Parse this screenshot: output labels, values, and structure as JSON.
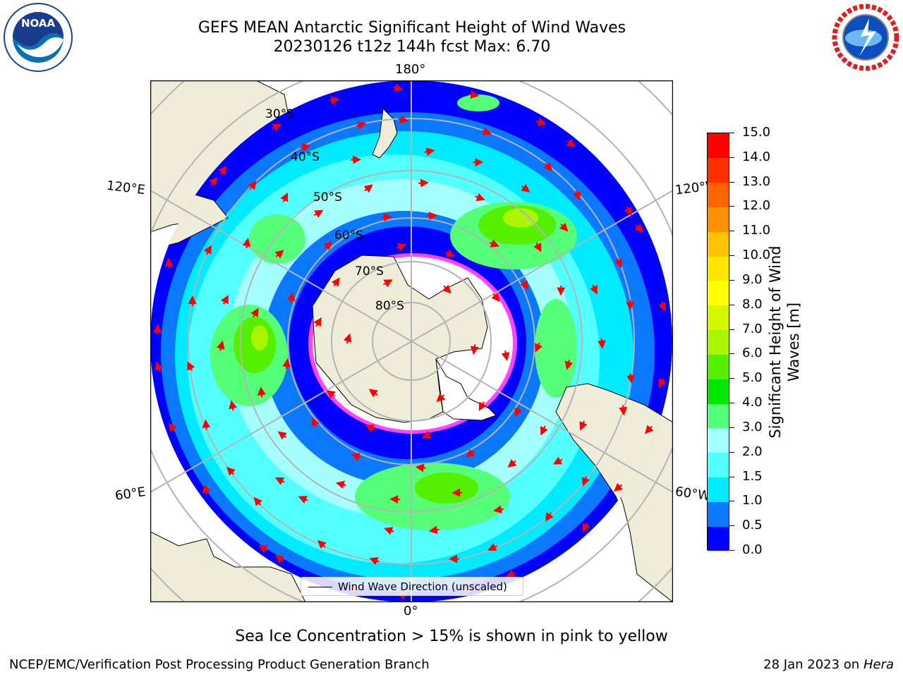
{
  "header": {
    "title": "GEFS MEAN Antarctic Significant Height of Wind Waves",
    "subtitle": "20230126 t12z 144h fcst   Max: 6.70"
  },
  "logos": {
    "left": {
      "name": "NOAA",
      "text": "NOAA",
      "icon": "noaa-logo"
    },
    "right": {
      "name": "NATIONAL WEATHER SERVICE",
      "icon": "nws-logo"
    }
  },
  "map": {
    "projection": "south-polar-stereographic",
    "lon_labels": {
      "top": "180°",
      "bottom": "0°",
      "upper_left": "120°E",
      "upper_right": "120°W",
      "lower_left": "60°E",
      "lower_right": "60°W"
    },
    "lat_labels": [
      "30°S",
      "40°S",
      "50°S",
      "60°S",
      "70°S",
      "80°S"
    ],
    "colors": {
      "land": "#efedda",
      "ocean_background": "#ffffff",
      "graticule": "#b4b4b4",
      "arrows": "#ff0000"
    },
    "legend": {
      "label": "Wind Wave Direction (unscaled)",
      "location": "lower-center"
    }
  },
  "colorbar": {
    "label_line1": "Significant Height of Wind",
    "label_line2": "Waves [m]",
    "levels": [
      "0.0",
      "0.5",
      "1.0",
      "1.5",
      "2.0",
      "3.0",
      "4.0",
      "5.0",
      "6.0",
      "7.0",
      "8.0",
      "9.0",
      "10.0",
      "11.0",
      "12.0",
      "13.0",
      "14.0",
      "15.0"
    ],
    "colors": [
      "#0000ff",
      "#0a78ff",
      "#00ebff",
      "#54ffff",
      "#a6ffff",
      "#55ff77",
      "#00e600",
      "#55ef00",
      "#aaf500",
      "#d4f800",
      "#ffff00",
      "#ffe600",
      "#ffc300",
      "#ff9000",
      "#ff6400",
      "#ff3000",
      "#ff0000"
    ]
  },
  "footer": {
    "caption": "Sea Ice Concentration > 15% is shown in pink to yellow",
    "left": "NCEP/EMC/Verification Post Processing Product Generation Branch",
    "right_date": "28 Jan 2023 on",
    "right_machine": "Hera"
  }
}
